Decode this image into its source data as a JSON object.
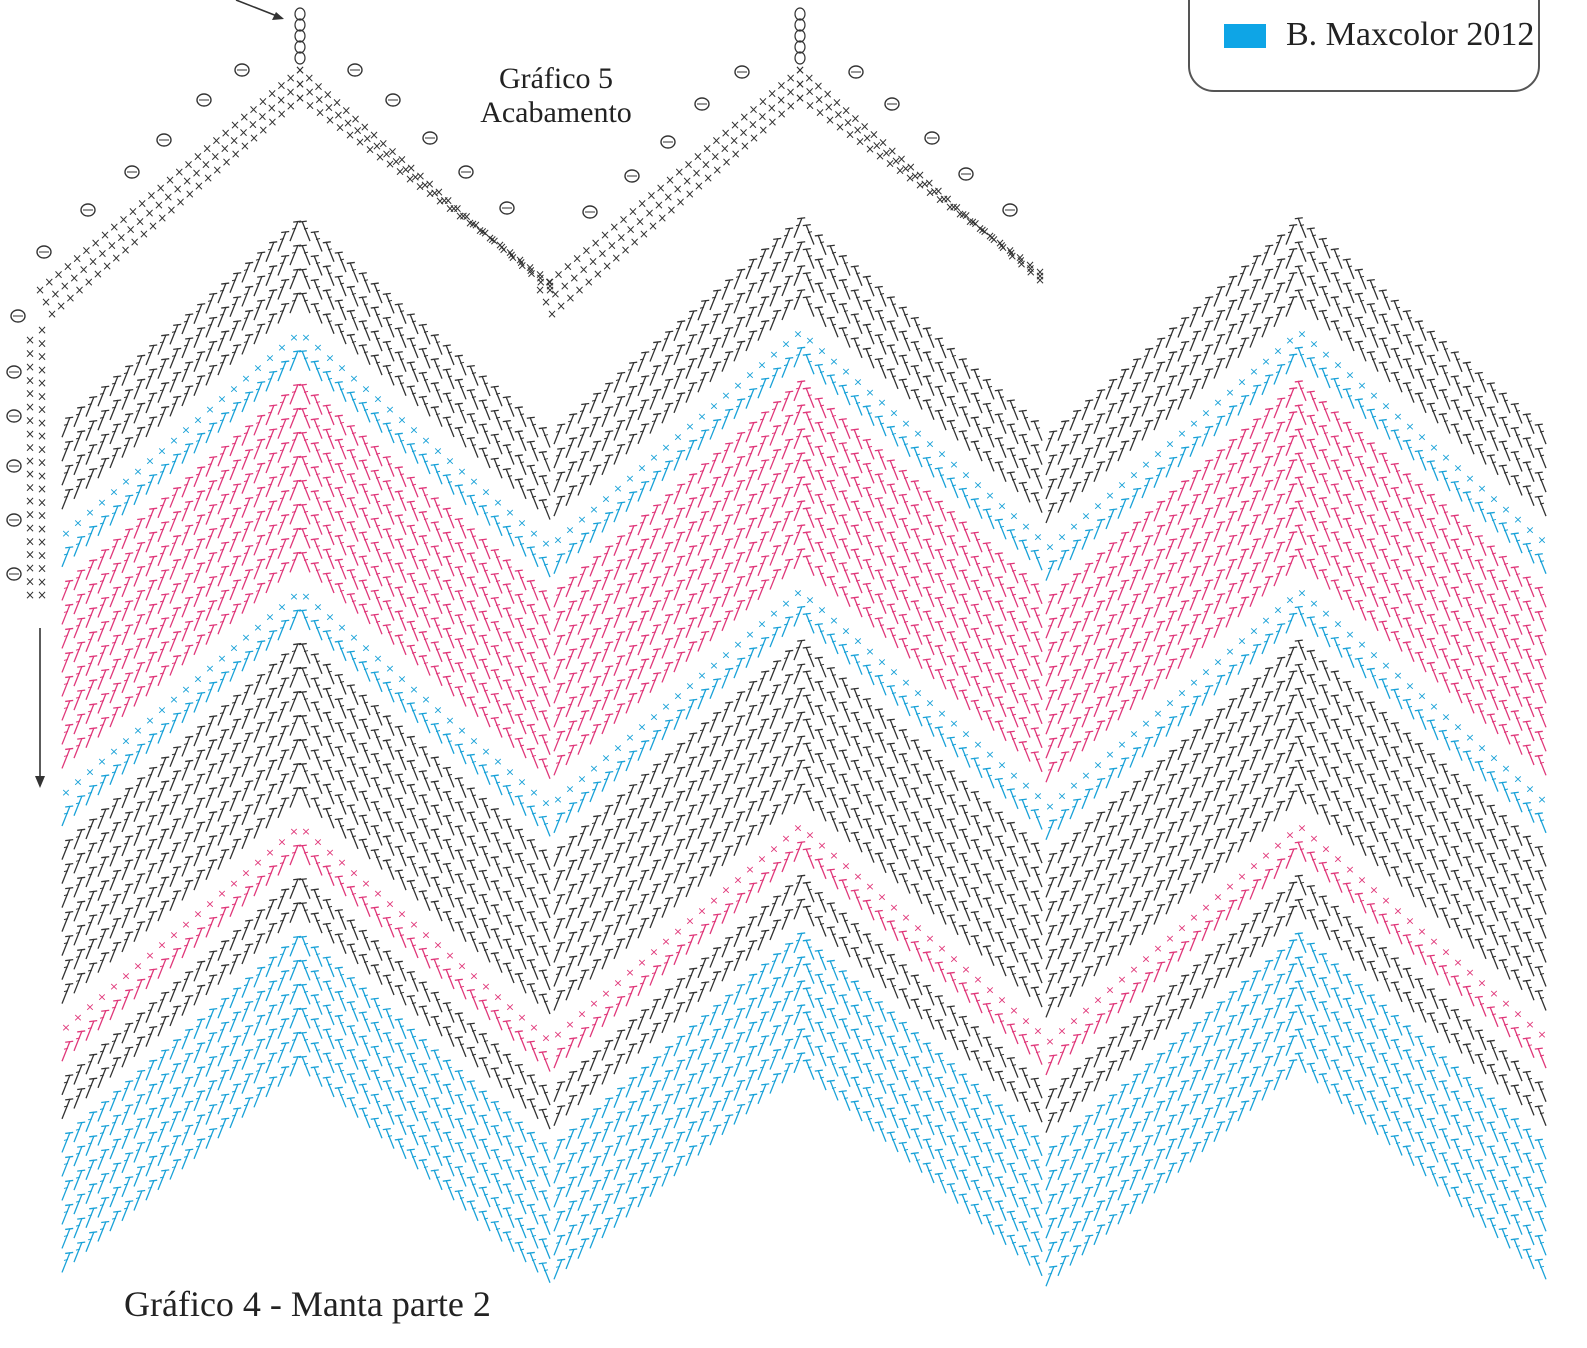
{
  "colors": {
    "black": "#333333",
    "pink": "#e0387a",
    "blue": "#1aa2d8",
    "legend_swatch": "#0ea5e6"
  },
  "legend": {
    "items": [
      {
        "label": "B. Maxcolor 2012",
        "color": "#0ea5e6"
      }
    ]
  },
  "chart5": {
    "title_line1": "Gráfico 5",
    "title_line2": "Acabamento"
  },
  "chart4": {
    "title": "Gráfico 4 - Manta parte 2"
  },
  "bands_top_to_bottom": [
    "black",
    "blue",
    "pink",
    "blue",
    "black",
    "pink",
    "black",
    "blue"
  ]
}
